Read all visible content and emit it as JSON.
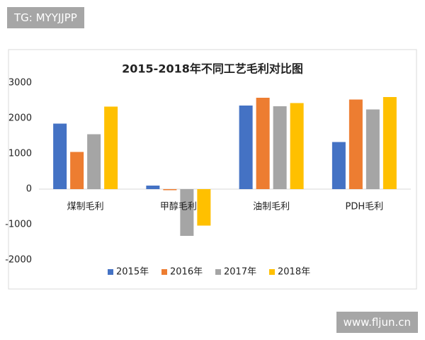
{
  "chart_data": {
    "type": "bar",
    "title": "2015-2018年不同工艺毛利对比图",
    "categories": [
      "煤制毛利",
      "甲醇毛利",
      "油制毛利",
      "PDH毛利"
    ],
    "series": [
      {
        "name": "2015年",
        "color": "#4472c4",
        "values": [
          1850,
          100,
          2360,
          1330
        ]
      },
      {
        "name": "2016年",
        "color": "#ed7d31",
        "values": [
          1050,
          -30,
          2580,
          2530
        ]
      },
      {
        "name": "2017年",
        "color": "#a5a5a5",
        "values": [
          1550,
          -1320,
          2340,
          2250
        ]
      },
      {
        "name": "2018年",
        "color": "#ffc000",
        "values": [
          2330,
          -1030,
          2430,
          2600
        ]
      }
    ],
    "ylim": [
      -2000,
      3000
    ],
    "yticks": [
      -2000,
      -1000,
      0,
      1000,
      2000,
      3000
    ],
    "grid": false,
    "legend": "bottom"
  },
  "watermarks": [
    "TG: MYYJJPP",
    "www.fljun.cn"
  ]
}
